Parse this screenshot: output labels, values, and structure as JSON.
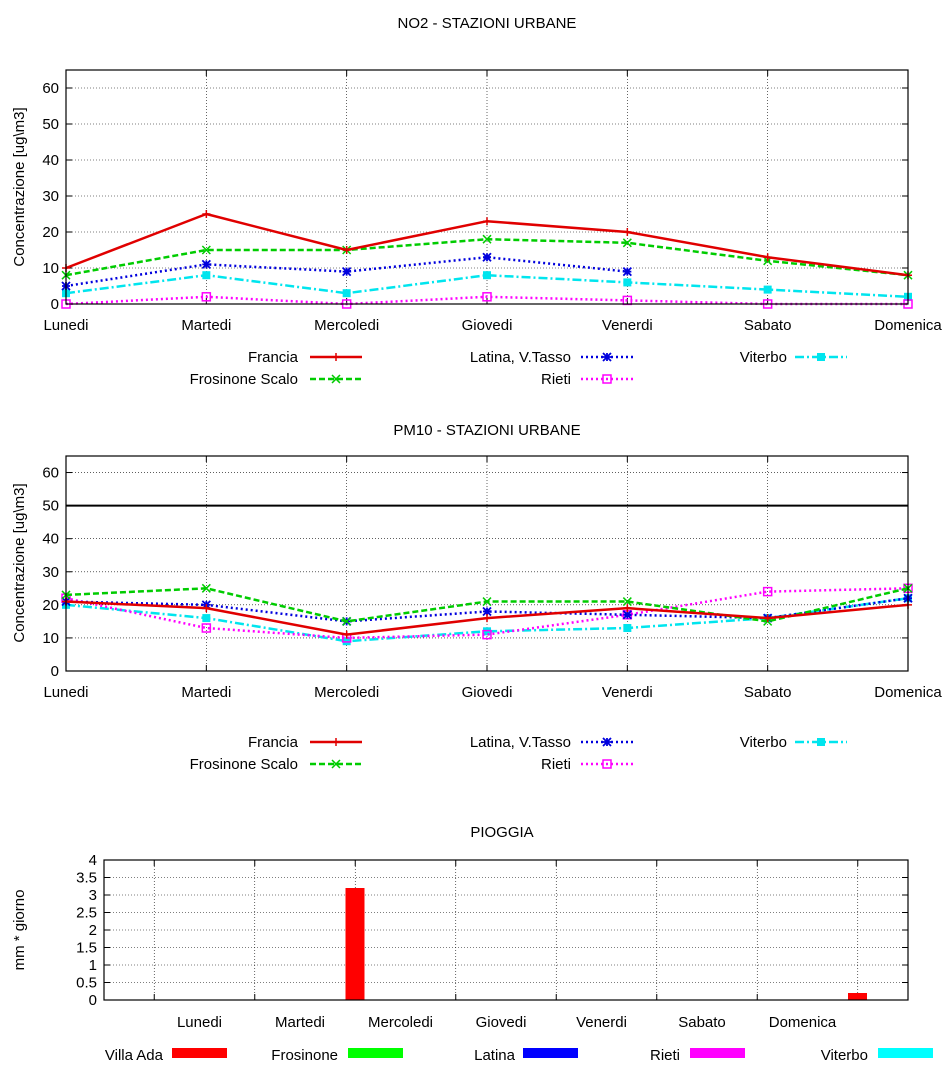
{
  "chart_data": [
    {
      "type": "line",
      "title": "NO2 - STAZIONI URBANE",
      "xlabel": "",
      "ylabel": "Concentrazione [ug\\m3]",
      "ylim": [
        0,
        65
      ],
      "yticks": [
        0,
        10,
        20,
        30,
        40,
        50,
        60
      ],
      "grid": true,
      "legend_position": "bottom",
      "categories": [
        "Lunedi",
        "Martedi",
        "Mercoledi",
        "Giovedi",
        "Venerdi",
        "Sabato",
        "Domenica"
      ],
      "series": [
        {
          "name": "Francia",
          "color": "#e00000",
          "style": "solid",
          "marker": "plus",
          "values": [
            10,
            25,
            15,
            23,
            20,
            13,
            8
          ]
        },
        {
          "name": "Frosinone Scalo",
          "color": "#00cc00",
          "style": "dashed",
          "marker": "cross",
          "values": [
            8,
            15,
            15,
            18,
            17,
            12,
            8
          ]
        },
        {
          "name": "Latina, V.Tasso",
          "color": "#0000dd",
          "style": "dotted",
          "marker": "star",
          "values": [
            5,
            11,
            9,
            13,
            9,
            null,
            null
          ]
        },
        {
          "name": "Rieti",
          "color": "#ff00ff",
          "style": "dotted",
          "marker": "square",
          "values": [
            0,
            2,
            0,
            2,
            1,
            0,
            0
          ]
        },
        {
          "name": "Viterbo",
          "color": "#00e5ee",
          "style": "dashdot",
          "marker": "filled-square",
          "values": [
            3,
            8,
            3,
            8,
            6,
            4,
            2
          ]
        }
      ]
    },
    {
      "type": "line",
      "title": "PM10 - STAZIONI URBANE",
      "xlabel": "",
      "ylabel": "Concentrazione [ug\\m3]",
      "ylim": [
        0,
        65
      ],
      "yticks": [
        0,
        10,
        20,
        30,
        40,
        50,
        60
      ],
      "grid": true,
      "threshold": 50,
      "legend_position": "bottom",
      "categories": [
        "Lunedi",
        "Martedi",
        "Mercoledi",
        "Giovedi",
        "Venerdi",
        "Sabato",
        "Domenica"
      ],
      "series": [
        {
          "name": "Francia",
          "color": "#e00000",
          "style": "solid",
          "marker": "plus",
          "values": [
            21,
            19,
            11,
            16,
            19,
            16,
            20
          ]
        },
        {
          "name": "Frosinone Scalo",
          "color": "#00cc00",
          "style": "dashed",
          "marker": "cross",
          "values": [
            23,
            25,
            15,
            21,
            21,
            15,
            25
          ]
        },
        {
          "name": "Latina, V.Tasso",
          "color": "#0000dd",
          "style": "dotted",
          "marker": "star",
          "values": [
            21,
            20,
            15,
            18,
            17,
            16,
            22
          ]
        },
        {
          "name": "Rieti",
          "color": "#ff00ff",
          "style": "dotted",
          "marker": "square",
          "values": [
            22,
            13,
            10,
            11,
            17,
            24,
            25
          ]
        },
        {
          "name": "Viterbo",
          "color": "#00e5ee",
          "style": "dashdot",
          "marker": "filled-square",
          "values": [
            20,
            16,
            9,
            12,
            13,
            16,
            22
          ]
        }
      ]
    },
    {
      "type": "bar",
      "title": "PIOGGIA",
      "xlabel": "",
      "ylabel": "mm * giorno",
      "ylim": [
        0,
        4
      ],
      "yticks": [
        "0",
        "0.5",
        "1",
        "1.5",
        "2",
        "2.5",
        "3",
        "3.5",
        "4"
      ],
      "grid": true,
      "legend_position": "bottom",
      "categories": [
        "Lunedi",
        "Martedi",
        "Mercoledi",
        "Giovedi",
        "Venerdi",
        "Sabato",
        "Domenica"
      ],
      "series": [
        {
          "name": "Villa Ada",
          "color": "#ff0000",
          "values": [
            0,
            3.2,
            0,
            0,
            0,
            0,
            0.2
          ]
        },
        {
          "name": "Frosinone",
          "color": "#00ff00",
          "values": [
            0,
            0,
            0,
            0,
            0,
            0,
            0
          ]
        },
        {
          "name": "Latina",
          "color": "#0000ff",
          "values": [
            0,
            0,
            0,
            0,
            0,
            0,
            0
          ]
        },
        {
          "name": "Rieti",
          "color": "#ff00ff",
          "values": [
            0,
            0,
            0,
            0,
            0,
            0,
            0
          ]
        },
        {
          "name": "Viterbo",
          "color": "#00ffff",
          "values": [
            0,
            0,
            0,
            0,
            0,
            0,
            0
          ]
        }
      ]
    }
  ]
}
